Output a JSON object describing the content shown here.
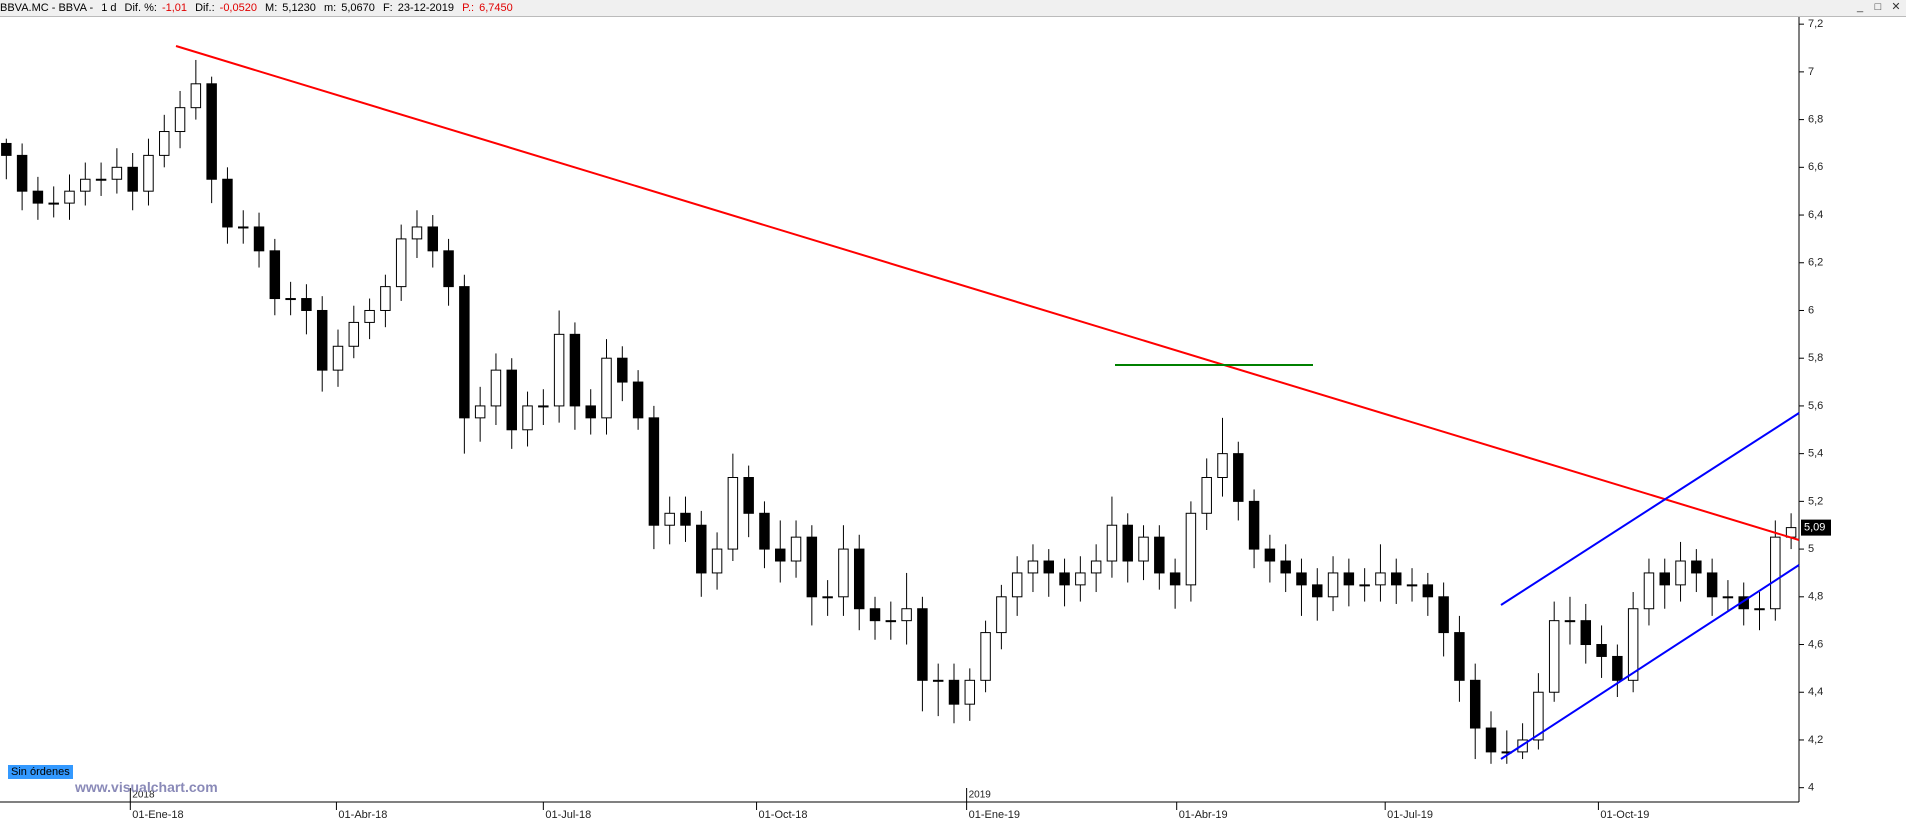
{
  "header": {
    "symbol": "BBVA.MC - BBVA -",
    "interval": "1 d",
    "dif_pct_label": "Dif. %:",
    "dif_pct": "-1,01",
    "dif_label": "Dif.:",
    "dif": "-0,0520",
    "max_label": "M:",
    "max": "5,1230",
    "min_label": "m:",
    "min": "5,0670",
    "date_label": "F:",
    "date": "23-12-2019",
    "p_label": "P.:",
    "p": "6,7450"
  },
  "footer": {
    "orders": "Sin órdenes",
    "site": "www.visualchart.com"
  },
  "chart_data": {
    "type": "candlestick",
    "open": [
      6.7,
      6.65,
      6.5,
      6.45,
      6.45,
      6.5,
      6.55,
      6.55,
      6.6,
      6.5,
      6.65,
      6.75,
      6.85,
      6.95,
      6.55,
      6.35,
      6.35,
      6.25,
      6.05,
      6.05,
      6.0,
      5.75,
      5.85,
      5.95,
      6.0,
      6.1,
      6.3,
      6.35,
      6.25,
      6.1,
      5.55,
      5.6,
      5.75,
      5.5,
      5.6,
      5.6,
      5.9,
      5.6,
      5.55,
      5.8,
      5.7,
      5.55,
      5.1,
      5.15,
      5.1,
      4.9,
      5.0,
      5.3,
      5.15,
      5.0,
      4.95,
      5.05,
      4.8,
      4.8,
      5.0,
      4.75,
      4.7,
      4.7,
      4.75,
      4.45,
      4.45,
      4.35,
      4.45,
      4.65,
      4.8,
      4.9,
      4.95,
      4.9,
      4.85,
      4.9,
      4.95,
      5.1,
      4.95,
      5.05,
      4.9,
      4.85,
      5.15,
      5.3,
      5.4,
      5.2,
      5.0,
      4.95,
      4.9,
      4.85,
      4.8,
      4.9,
      4.85,
      4.85,
      4.9,
      4.85,
      4.85,
      4.8,
      4.65,
      4.45,
      4.25,
      4.15,
      4.15,
      4.2,
      4.4,
      4.7,
      4.7,
      4.6,
      4.55,
      4.45,
      4.75,
      4.9,
      4.85,
      4.95,
      4.9,
      4.8,
      4.8,
      4.75,
      4.75,
      5.05
    ],
    "high": [
      6.72,
      6.7,
      6.56,
      6.52,
      6.57,
      6.62,
      6.62,
      6.68,
      6.66,
      6.72,
      6.82,
      6.92,
      7.05,
      6.98,
      6.6,
      6.42,
      6.41,
      6.3,
      6.12,
      6.11,
      6.06,
      5.92,
      6.02,
      6.05,
      6.15,
      6.36,
      6.42,
      6.4,
      6.3,
      6.15,
      5.68,
      5.82,
      5.8,
      5.66,
      5.67,
      6.0,
      5.95,
      5.67,
      5.88,
      5.85,
      5.75,
      5.6,
      5.22,
      5.22,
      5.16,
      5.07,
      5.4,
      5.35,
      5.2,
      5.12,
      5.12,
      5.1,
      4.87,
      5.1,
      5.06,
      4.8,
      4.78,
      4.9,
      4.8,
      4.52,
      4.52,
      4.5,
      4.7,
      4.85,
      4.97,
      5.02,
      5.0,
      4.96,
      4.97,
      5.02,
      5.22,
      5.15,
      5.1,
      5.1,
      4.96,
      5.2,
      5.38,
      5.55,
      5.45,
      5.25,
      5.06,
      5.02,
      4.96,
      4.92,
      4.97,
      4.96,
      4.92,
      5.02,
      4.96,
      4.92,
      4.9,
      4.86,
      4.72,
      4.52,
      4.32,
      4.24,
      4.27,
      4.48,
      4.78,
      4.8,
      4.77,
      4.68,
      4.6,
      4.82,
      4.96,
      4.96,
      5.03,
      5.0,
      4.96,
      4.87,
      4.86,
      4.82,
      5.12,
      5.15
    ],
    "low": [
      6.55,
      6.42,
      6.38,
      6.39,
      6.38,
      6.44,
      6.48,
      6.49,
      6.42,
      6.44,
      6.6,
      6.68,
      6.8,
      6.45,
      6.28,
      6.28,
      6.18,
      5.98,
      5.98,
      5.9,
      5.66,
      5.68,
      5.8,
      5.88,
      5.93,
      6.04,
      6.22,
      6.18,
      6.02,
      5.4,
      5.45,
      5.52,
      5.42,
      5.43,
      5.52,
      5.53,
      5.5,
      5.48,
      5.48,
      5.62,
      5.5,
      5.0,
      5.02,
      5.03,
      4.8,
      4.83,
      4.95,
      5.05,
      4.92,
      4.86,
      4.88,
      4.68,
      4.72,
      4.72,
      4.66,
      4.62,
      4.62,
      4.6,
      4.32,
      4.3,
      4.27,
      4.28,
      4.4,
      4.58,
      4.72,
      4.82,
      4.8,
      4.76,
      4.78,
      4.82,
      4.88,
      4.86,
      4.87,
      4.83,
      4.75,
      4.78,
      5.08,
      5.22,
      5.12,
      4.92,
      4.86,
      4.82,
      4.72,
      4.7,
      4.74,
      4.76,
      4.78,
      4.78,
      4.77,
      4.78,
      4.72,
      4.55,
      4.36,
      4.12,
      4.1,
      4.1,
      4.12,
      4.16,
      4.36,
      4.6,
      4.52,
      4.46,
      4.38,
      4.4,
      4.68,
      4.75,
      4.78,
      4.82,
      4.72,
      4.74,
      4.68,
      4.66,
      4.7,
      5.0
    ],
    "close": [
      6.65,
      6.5,
      6.45,
      6.45,
      6.5,
      6.55,
      6.55,
      6.6,
      6.5,
      6.65,
      6.75,
      6.85,
      6.95,
      6.55,
      6.35,
      6.35,
      6.25,
      6.05,
      6.05,
      6.0,
      5.75,
      5.85,
      5.95,
      6.0,
      6.1,
      6.3,
      6.35,
      6.25,
      6.1,
      5.55,
      5.6,
      5.75,
      5.5,
      5.6,
      5.6,
      5.9,
      5.6,
      5.55,
      5.8,
      5.7,
      5.55,
      5.1,
      5.15,
      5.1,
      4.9,
      5.0,
      5.3,
      5.15,
      5.0,
      4.95,
      5.05,
      4.8,
      4.8,
      5.0,
      4.75,
      4.7,
      4.7,
      4.75,
      4.45,
      4.45,
      4.35,
      4.45,
      4.65,
      4.8,
      4.9,
      4.95,
      4.9,
      4.85,
      4.9,
      4.95,
      5.1,
      4.95,
      5.05,
      4.9,
      4.85,
      5.15,
      5.3,
      5.4,
      5.2,
      5.0,
      4.95,
      4.9,
      4.85,
      4.8,
      4.9,
      4.85,
      4.85,
      4.9,
      4.85,
      4.85,
      4.8,
      4.65,
      4.45,
      4.25,
      4.15,
      4.15,
      4.2,
      4.4,
      4.7,
      4.7,
      4.6,
      4.55,
      4.45,
      4.75,
      4.9,
      4.85,
      4.95,
      4.9,
      4.8,
      4.8,
      4.75,
      4.75,
      5.05,
      5.09
    ],
    "last_label": "5,09",
    "colors": {
      "up": "#ffffff",
      "down": "#000000",
      "outline": "#000000"
    },
    "xlim": [
      -0.4,
      113.5
    ],
    "ylim": [
      3.94,
      7.23
    ],
    "xticks": [
      {
        "value": 7.85,
        "label": "01-Ene-18"
      },
      {
        "value": 20.9,
        "label": "01-Abr-18"
      },
      {
        "value": 34,
        "label": "01-Jul-18"
      },
      {
        "value": 47.5,
        "label": "01-Oct-18"
      },
      {
        "value": 60.8,
        "label": "01-Ene-19"
      },
      {
        "value": 74.1,
        "label": "01-Abr-19"
      },
      {
        "value": 87.3,
        "label": "01-Jul-19"
      },
      {
        "value": 100.8,
        "label": "01-Oct-19"
      }
    ],
    "year_ticks": [
      {
        "value": 7.85,
        "label": "2018"
      },
      {
        "value": 60.8,
        "label": "2019"
      }
    ],
    "yticks": [
      4,
      {
        "value": 4.2,
        "label": "4,2"
      },
      {
        "value": 4.4,
        "label": "4,4"
      },
      {
        "value": 4.6,
        "label": "4,6"
      },
      {
        "value": 4.8,
        "label": "4,8"
      },
      5,
      {
        "value": 5.2,
        "label": "5,2"
      },
      {
        "value": 5.4,
        "label": "5,4"
      },
      {
        "value": 5.6,
        "label": "5,6"
      },
      {
        "value": 5.8,
        "label": "5,8"
      },
      6,
      {
        "value": 6.2,
        "label": "6,2"
      },
      {
        "value": 6.4,
        "label": "6,4"
      },
      {
        "value": 6.6,
        "label": "6,6"
      },
      {
        "value": 6.8,
        "label": "6,8"
      },
      7,
      {
        "value": 7.2,
        "label": "7,2"
      }
    ]
  }
}
